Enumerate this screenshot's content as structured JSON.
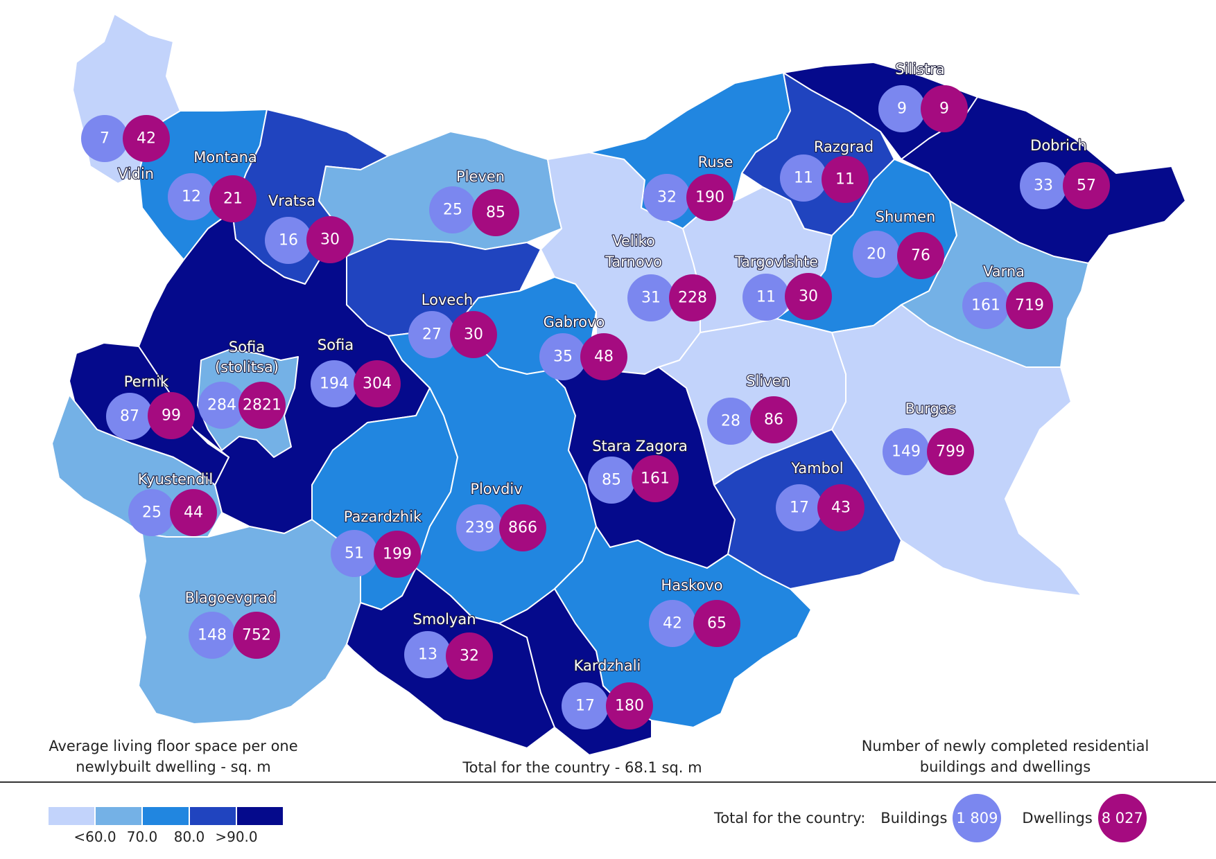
{
  "legend": {
    "title_lines": [
      "Average living floor space per one",
      "newlybuilt dwelling - sq. m"
    ],
    "classes": [
      "#c2d3fb",
      "#74b1e6",
      "#2186e0",
      "#2044bf",
      "#050a8c"
    ],
    "ticks": [
      "<60.0",
      "70.0",
      "80.0",
      ">90.0"
    ]
  },
  "center_note": "Total for the country - 68.1 sq. m",
  "right_note_lines": [
    "Number of newly completed residential",
    "buildings and dwellings"
  ],
  "totals": {
    "label": "Total for the country:",
    "buildings_label": "Buildings",
    "buildings_value": "1 809",
    "dwellings_label": "Dwellings",
    "dwellings_value": "8 027"
  },
  "colors": {
    "building_circle": "#7b87ef",
    "dwelling_circle": "#a50b80",
    "border": "#ffffff"
  },
  "regions": [
    {
      "name": "Vidin",
      "class": 0,
      "buildings": "7",
      "dwellings": "42"
    },
    {
      "name": "Montana",
      "class": 2,
      "buildings": "12",
      "dwellings": "21"
    },
    {
      "name": "Vratsa",
      "class": 3,
      "buildings": "16",
      "dwellings": "30"
    },
    {
      "name": "Pleven",
      "class": 1,
      "buildings": "25",
      "dwellings": "85"
    },
    {
      "name": "Lovech",
      "class": 3,
      "buildings": "27",
      "dwellings": "30"
    },
    {
      "name": "Veliko Tarnovo",
      "class": 0,
      "buildings": "31",
      "dwellings": "228"
    },
    {
      "name": "Ruse",
      "class": 2,
      "buildings": "32",
      "dwellings": "190"
    },
    {
      "name": "Razgrad",
      "class": 3,
      "buildings": "11",
      "dwellings": "11"
    },
    {
      "name": "Silistra",
      "class": 4,
      "buildings": "9",
      "dwellings": "9"
    },
    {
      "name": "Dobrich",
      "class": 4,
      "buildings": "33",
      "dwellings": "57"
    },
    {
      "name": "Shumen",
      "class": 2,
      "buildings": "20",
      "dwellings": "76"
    },
    {
      "name": "Targovishte",
      "class": 0,
      "buildings": "11",
      "dwellings": "30"
    },
    {
      "name": "Varna",
      "class": 1,
      "buildings": "161",
      "dwellings": "719"
    },
    {
      "name": "Gabrovo",
      "class": 2,
      "buildings": "35",
      "dwellings": "48"
    },
    {
      "name": "Sofia",
      "class": 4,
      "buildings": "194",
      "dwellings": "304"
    },
    {
      "name": "Sofia (stolitsa)",
      "class": 1,
      "buildings": "284",
      "dwellings": "2821"
    },
    {
      "name": "Pernik",
      "class": 4,
      "buildings": "87",
      "dwellings": "99"
    },
    {
      "name": "Kyustendil",
      "class": 1,
      "buildings": "25",
      "dwellings": "44"
    },
    {
      "name": "Blagoevgrad",
      "class": 1,
      "buildings": "148",
      "dwellings": "752"
    },
    {
      "name": "Pazardzhik",
      "class": 2,
      "buildings": "51",
      "dwellings": "199"
    },
    {
      "name": "Plovdiv",
      "class": 2,
      "buildings": "239",
      "dwellings": "866"
    },
    {
      "name": "Smolyan",
      "class": 4,
      "buildings": "13",
      "dwellings": "32"
    },
    {
      "name": "Stara Zagora",
      "class": 4,
      "buildings": "85",
      "dwellings": "161"
    },
    {
      "name": "Haskovo",
      "class": 2,
      "buildings": "42",
      "dwellings": "65"
    },
    {
      "name": "Kardzhali",
      "class": 4,
      "buildings": "17",
      "dwellings": "180"
    },
    {
      "name": "Sliven",
      "class": 0,
      "buildings": "28",
      "dwellings": "86"
    },
    {
      "name": "Yambol",
      "class": 3,
      "buildings": "17",
      "dwellings": "43"
    },
    {
      "name": "Burgas",
      "class": 0,
      "buildings": "149",
      "dwellings": "799"
    }
  ]
}
